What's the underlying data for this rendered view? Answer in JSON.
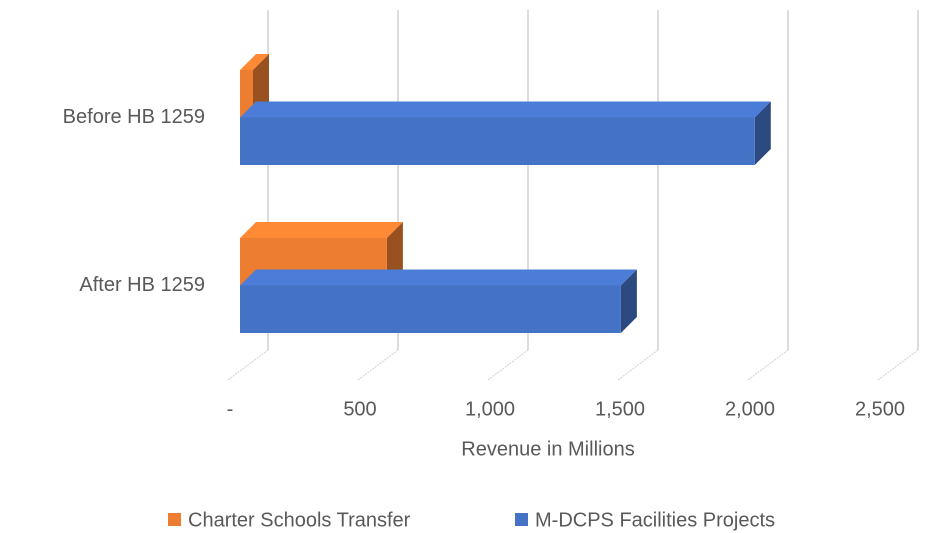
{
  "chart_data": {
    "type": "bar3d_horizontal",
    "categories": [
      "Before HB 1259",
      "After HB 1259"
    ],
    "series": [
      {
        "name": "Charter Schools Transfer",
        "color": "#ed7d31",
        "values": [
          50,
          565
        ]
      },
      {
        "name": "M-DCPS Facilities Projects",
        "color": "#4472c4",
        "values": [
          1980,
          1465
        ]
      }
    ],
    "x_label": "Revenue in Millions",
    "xlim": [
      0,
      2500
    ],
    "xticks": [
      {
        "value": 0,
        "label": "-"
      },
      500,
      {
        "value": 1000,
        "label": "1,000"
      },
      {
        "value": 1500,
        "label": "1,500"
      },
      {
        "value": 2000,
        "label": "2,000"
      },
      {
        "value": 2500,
        "label": "2,500"
      }
    ],
    "grid": true,
    "legend": "bottom"
  }
}
